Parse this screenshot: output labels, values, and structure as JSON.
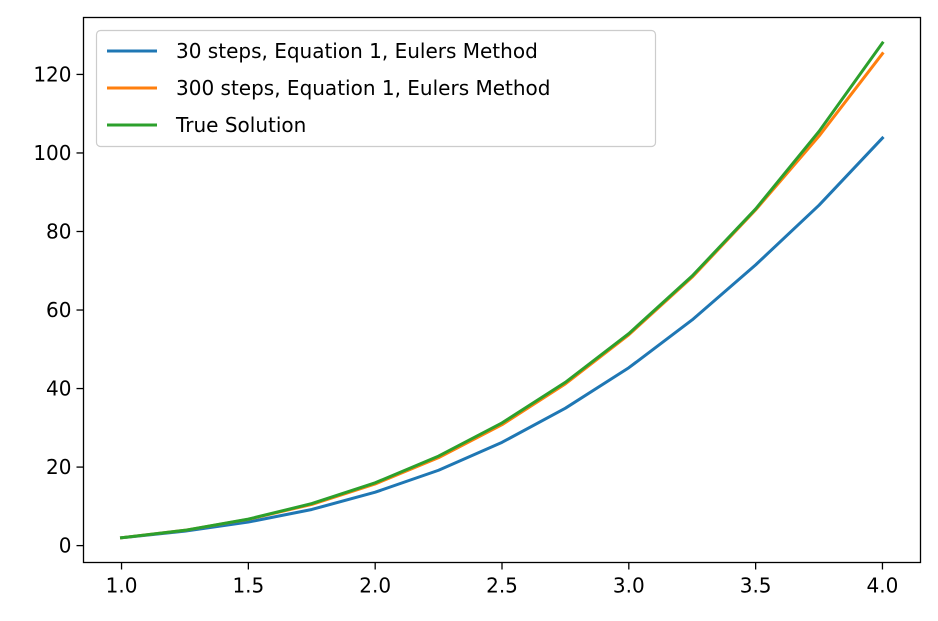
{
  "chart_data": {
    "type": "line",
    "title": "",
    "xlabel": "",
    "ylabel": "",
    "xlim": [
      0.85,
      4.15
    ],
    "ylim": [
      -4.3,
      134.5
    ],
    "xticks": [
      1.0,
      1.5,
      2.0,
      2.5,
      3.0,
      3.5,
      4.0
    ],
    "xtick_labels": [
      "1.0",
      "1.5",
      "2.0",
      "2.5",
      "3.0",
      "3.5",
      "4.0"
    ],
    "yticks": [
      0,
      20,
      40,
      60,
      80,
      100,
      120
    ],
    "ytick_labels": [
      "0",
      "20",
      "40",
      "60",
      "80",
      "100",
      "120"
    ],
    "grid": false,
    "legend_position": "upper-left",
    "series": [
      {
        "name": "30 steps, Equation 1, Eulers Method",
        "color": "#1f77b4",
        "x": [
          1.0,
          1.25,
          1.5,
          1.75,
          2.0,
          2.25,
          2.5,
          2.75,
          3.0,
          3.25,
          3.5,
          3.75,
          4.0
        ],
        "y": [
          2.0,
          3.7,
          6.0,
          9.2,
          13.6,
          19.2,
          26.3,
          35.0,
          45.3,
          57.5,
          71.5,
          86.7,
          103.8
        ]
      },
      {
        "name": "300 steps, Equation 1, Eulers Method",
        "color": "#ff7f0e",
        "x": [
          1.0,
          1.25,
          1.5,
          1.75,
          2.0,
          2.25,
          2.5,
          2.75,
          3.0,
          3.25,
          3.5,
          3.75,
          4.0
        ],
        "y": [
          2.0,
          3.9,
          6.7,
          10.5,
          15.7,
          22.4,
          30.8,
          41.2,
          53.7,
          68.4,
          85.5,
          104.3,
          125.3
        ]
      },
      {
        "name": "True Solution",
        "color": "#2ca02c",
        "x": [
          1.0,
          1.25,
          1.5,
          1.75,
          2.0,
          2.25,
          2.5,
          2.75,
          3.0,
          3.25,
          3.5,
          3.75,
          4.0
        ],
        "y": [
          2.0,
          3.9,
          6.75,
          10.7,
          16.0,
          22.8,
          31.25,
          41.6,
          54.0,
          68.7,
          85.75,
          105.5,
          128.0
        ]
      }
    ]
  }
}
